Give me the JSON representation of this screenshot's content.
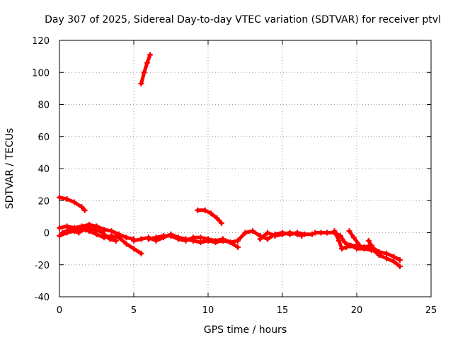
{
  "chart_data": {
    "type": "scatter",
    "title": "Day 307 of 2025, Sidereal Day-to-day VTEC variation (SDTVAR) for receiver ptvl",
    "xlabel": "GPS time / hours",
    "ylabel": "SDTVAR / TECUs",
    "xlim": [
      0,
      25
    ],
    "ylim": [
      -40,
      120
    ],
    "xticks": [
      0,
      5,
      10,
      15,
      20,
      25
    ],
    "yticks": [
      -40,
      -20,
      0,
      20,
      40,
      60,
      80,
      100,
      120
    ],
    "grid": true,
    "marker": "plus",
    "color": "#ff0000",
    "series": [
      {
        "name": "seg1",
        "points": [
          [
            5.5,
            93
          ],
          [
            5.7,
            100
          ],
          [
            5.9,
            106
          ],
          [
            6.1,
            111
          ]
        ]
      },
      {
        "name": "seg2",
        "points": [
          [
            0.0,
            22
          ],
          [
            0.5,
            21
          ],
          [
            1.0,
            19
          ],
          [
            1.5,
            16
          ],
          [
            1.7,
            14
          ]
        ]
      },
      {
        "name": "seg3",
        "points": [
          [
            9.3,
            14
          ],
          [
            9.8,
            14
          ],
          [
            10.2,
            12
          ],
          [
            10.6,
            9
          ],
          [
            10.9,
            6
          ]
        ]
      },
      {
        "name": "seg4",
        "points": [
          [
            0.0,
            3
          ],
          [
            0.5,
            4
          ],
          [
            1.0,
            3
          ],
          [
            1.5,
            4
          ],
          [
            2.0,
            5
          ],
          [
            2.5,
            4
          ],
          [
            3.0,
            2
          ],
          [
            3.5,
            1
          ],
          [
            4.0,
            -1
          ],
          [
            4.5,
            -3
          ],
          [
            5.0,
            -4
          ]
        ]
      },
      {
        "name": "seg5",
        "points": [
          [
            0.0,
            -2
          ],
          [
            0.5,
            0
          ],
          [
            1.0,
            1
          ],
          [
            1.5,
            2
          ],
          [
            2.0,
            1
          ],
          [
            2.5,
            -1
          ],
          [
            3.0,
            -3
          ],
          [
            3.5,
            -2
          ],
          [
            4.0,
            -3
          ],
          [
            4.5,
            -7
          ],
          [
            5.0,
            -10
          ],
          [
            5.5,
            -13
          ]
        ]
      },
      {
        "name": "seg6",
        "points": [
          [
            0.2,
            0
          ],
          [
            0.7,
            2
          ],
          [
            1.3,
            0
          ],
          [
            1.8,
            3
          ],
          [
            2.4,
            2
          ],
          [
            2.9,
            0
          ],
          [
            3.4,
            -4
          ],
          [
            3.8,
            -5
          ]
        ]
      },
      {
        "name": "seg7",
        "points": [
          [
            5.0,
            -5
          ],
          [
            5.5,
            -4
          ],
          [
            6.0,
            -3
          ],
          [
            6.5,
            -5
          ],
          [
            7.0,
            -3
          ],
          [
            7.5,
            -1
          ],
          [
            8.0,
            -3
          ],
          [
            8.5,
            -4
          ],
          [
            9.0,
            -5
          ],
          [
            9.5,
            -6
          ],
          [
            10.0,
            -5
          ],
          [
            10.5,
            -6
          ],
          [
            11.0,
            -5
          ],
          [
            11.5,
            -6
          ],
          [
            12.0,
            -5
          ]
        ]
      },
      {
        "name": "seg8",
        "points": [
          [
            6.0,
            -4
          ],
          [
            6.5,
            -3
          ],
          [
            7.0,
            -2
          ],
          [
            7.5,
            -2
          ],
          [
            8.0,
            -4
          ],
          [
            8.5,
            -5
          ],
          [
            9.0,
            -3
          ],
          [
            9.5,
            -3
          ],
          [
            10.0,
            -4
          ],
          [
            10.5,
            -5
          ],
          [
            11.0,
            -4
          ],
          [
            11.5,
            -6
          ],
          [
            12.0,
            -9
          ]
        ]
      },
      {
        "name": "seg9",
        "points": [
          [
            12.0,
            -5
          ],
          [
            12.5,
            0
          ],
          [
            13.0,
            1
          ],
          [
            13.5,
            -2
          ],
          [
            14.0,
            -4
          ],
          [
            14.5,
            -1
          ],
          [
            15.0,
            0
          ],
          [
            15.5,
            -1
          ],
          [
            16.0,
            0
          ],
          [
            16.5,
            -1
          ],
          [
            17.0,
            -1
          ]
        ]
      },
      {
        "name": "seg10",
        "points": [
          [
            13.5,
            -4
          ],
          [
            14.0,
            0
          ],
          [
            14.5,
            -2
          ],
          [
            15.0,
            -1
          ],
          [
            15.5,
            0
          ],
          [
            16.0,
            -1
          ],
          [
            16.3,
            -2
          ]
        ]
      },
      {
        "name": "seg11",
        "points": [
          [
            17.2,
            0
          ],
          [
            17.6,
            0
          ],
          [
            18.0,
            0
          ],
          [
            18.5,
            0
          ],
          [
            18.9,
            -2
          ],
          [
            19.2,
            -6
          ],
          [
            19.5,
            -8
          ],
          [
            20.0,
            -8
          ],
          [
            20.5,
            -9
          ],
          [
            21.0,
            -8
          ]
        ]
      },
      {
        "name": "seg12",
        "points": [
          [
            18.5,
            1
          ],
          [
            18.8,
            -5
          ],
          [
            19.0,
            -10
          ],
          [
            19.3,
            -9
          ],
          [
            19.6,
            -8
          ],
          [
            20.0,
            -10
          ],
          [
            20.5,
            -10
          ],
          [
            21.0,
            -11
          ]
        ]
      },
      {
        "name": "seg13",
        "points": [
          [
            19.5,
            1
          ],
          [
            19.8,
            -3
          ],
          [
            20.2,
            -8
          ]
        ]
      },
      {
        "name": "seg14",
        "points": [
          [
            20.8,
            -5
          ],
          [
            21.0,
            -9
          ],
          [
            21.5,
            -12
          ],
          [
            22.0,
            -13
          ],
          [
            22.5,
            -15
          ],
          [
            22.9,
            -17
          ]
        ]
      },
      {
        "name": "seg15",
        "points": [
          [
            21.0,
            -10
          ],
          [
            21.5,
            -14
          ],
          [
            22.0,
            -16
          ],
          [
            22.5,
            -18
          ],
          [
            22.9,
            -21
          ]
        ]
      }
    ]
  }
}
